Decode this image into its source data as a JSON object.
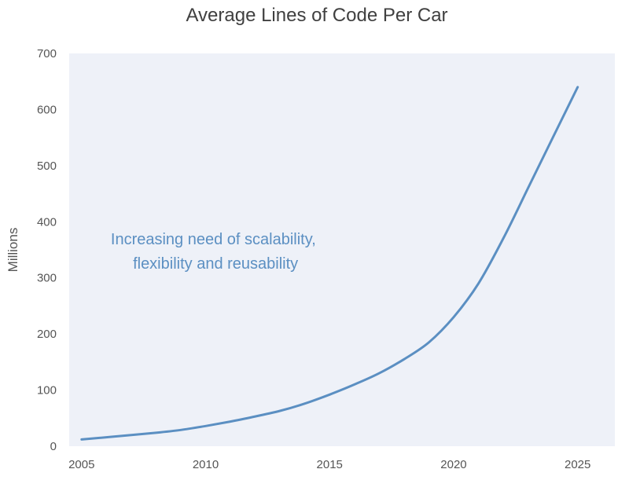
{
  "chart_data": {
    "type": "line",
    "title": "Average Lines of Code Per Car",
    "xlabel": "",
    "ylabel": "Millions",
    "xlim": [
      2004.5,
      2026.5
    ],
    "ylim": [
      0,
      700
    ],
    "xticks": [
      2005,
      2010,
      2015,
      2020,
      2025
    ],
    "yticks": [
      0,
      100,
      200,
      300,
      400,
      500,
      600,
      700
    ],
    "grid": false,
    "background": "#eef1f8",
    "line_color": "#5b8fc2",
    "annotation": {
      "lines": [
        "Increasing need of scalability,",
        "flexibility and reusability"
      ],
      "anchor": [
        2010.4,
        360
      ]
    },
    "series": [
      {
        "x": [
          2005,
          2006,
          2007,
          2008,
          2009,
          2010,
          2011,
          2012,
          2013,
          2014,
          2015,
          2016,
          2017,
          2018,
          2019,
          2020,
          2021,
          2022,
          2023,
          2024,
          2025
        ],
        "values": [
          12,
          16,
          20,
          24,
          29,
          36,
          44,
          53,
          63,
          76,
          92,
          110,
          130,
          155,
          185,
          230,
          290,
          370,
          460,
          550,
          640
        ]
      }
    ]
  }
}
